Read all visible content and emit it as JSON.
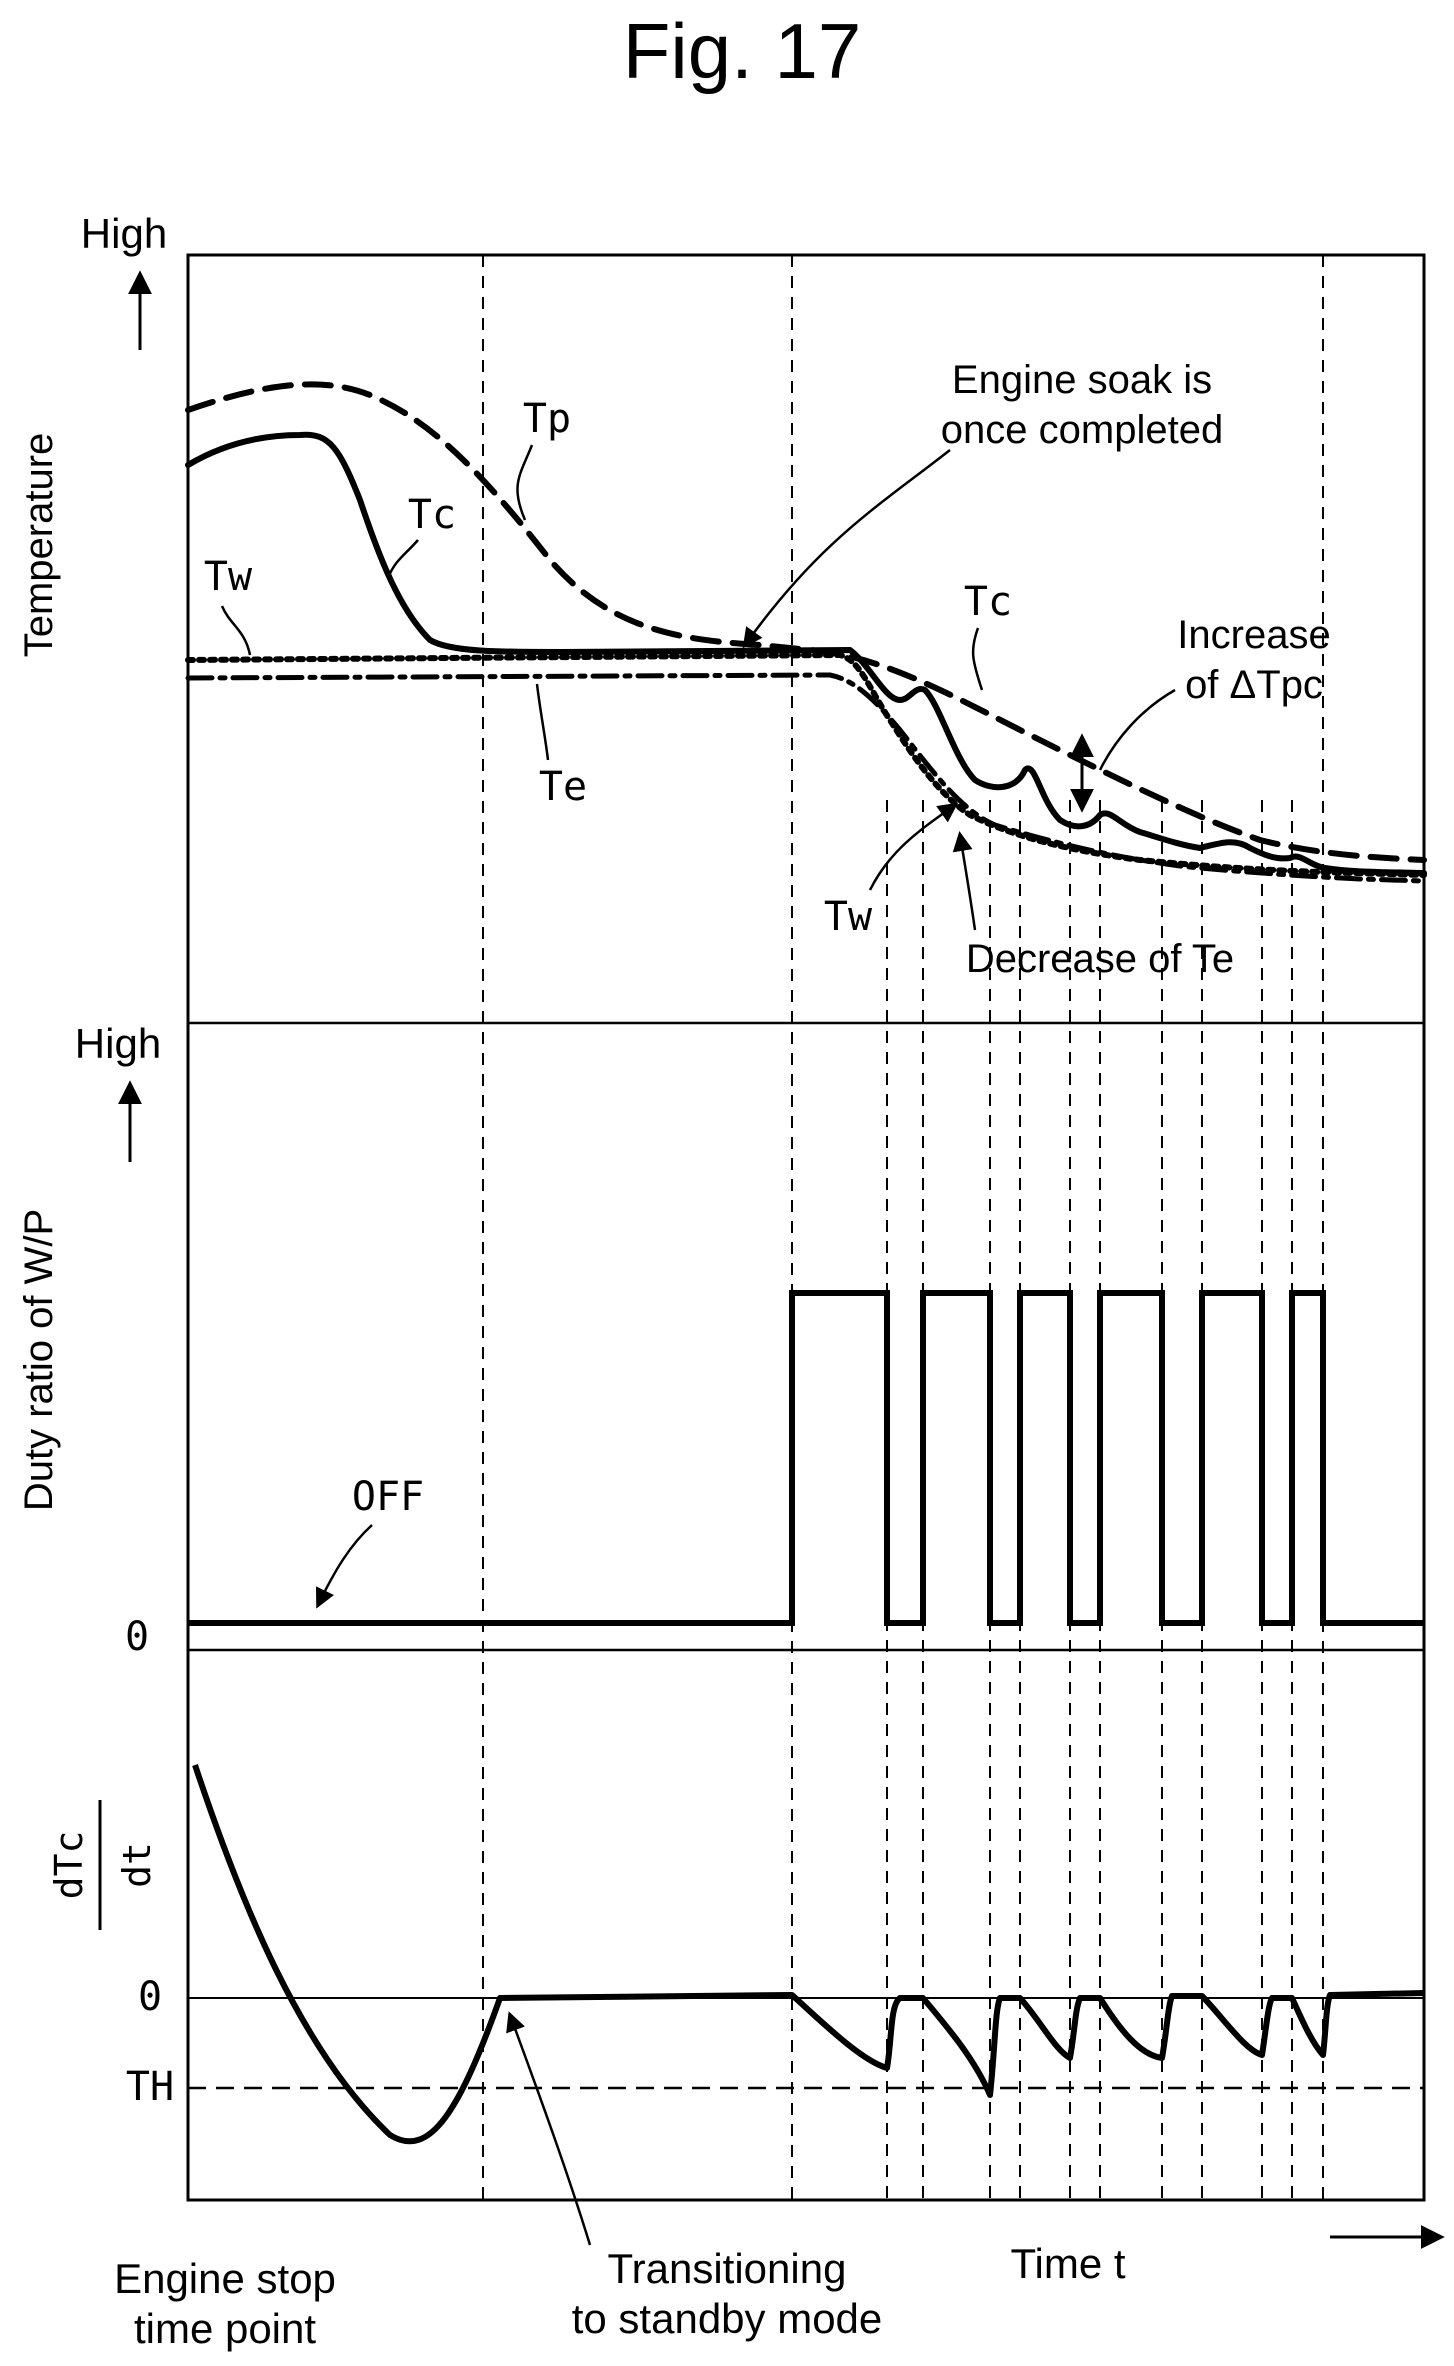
{
  "figure": {
    "title": "Fig. 17"
  },
  "temperature_panel": {
    "axis_label": "Temperature",
    "axis_high": "High",
    "labels": {
      "tp": "Tp",
      "tc_1": "Tc",
      "tc_2": "Tc",
      "tw_1": "Tw",
      "tw_2": "Tw",
      "te": "Te",
      "engine_soak_line1": "Engine soak is",
      "engine_soak_line2": "once completed",
      "increase_line1": "Increase",
      "increase_line2": "of ΔTpc",
      "decrease": "Decrease of Te"
    }
  },
  "duty_panel": {
    "axis_label": "Duty ratio of W/P",
    "axis_high": "High",
    "zero_label": "0",
    "off_label": "OFF"
  },
  "derivative_panel": {
    "numerator": "dTc",
    "denominator": "dt",
    "zero_label": "0",
    "threshold_label": "TH"
  },
  "time_axis": {
    "label": "Time t",
    "start_line1": "Engine stop",
    "start_line2": "time point",
    "standby_line1": "Transitioning",
    "standby_line2": "to standby mode"
  },
  "colors": {
    "ink": "#000000",
    "background": "#ffffff"
  }
}
